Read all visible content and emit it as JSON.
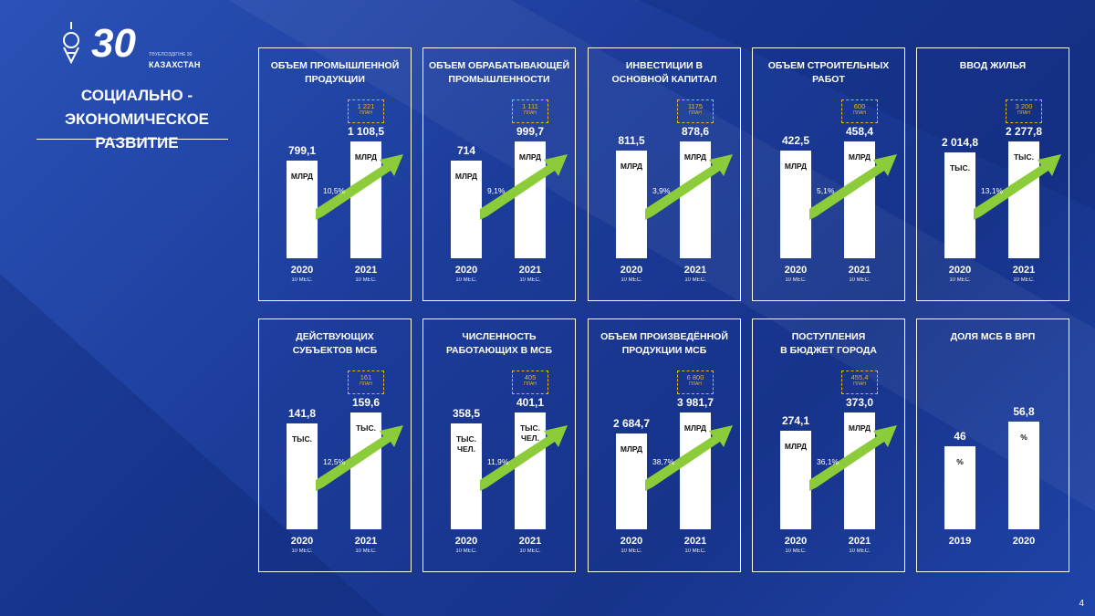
{
  "header": {
    "logo_caption": "КАЗАХСТАН",
    "logo_small": "ТӘУЕЛСІЗДІГІНЕ 30",
    "title_line1": "СОЦИАЛЬНО -",
    "title_line2": "ЭКОНОМИЧЕСКОЕ РАЗВИТИЕ"
  },
  "colors": {
    "accent_arrow": "#8ccc3a",
    "plan_border": "#e8b321",
    "card_border": "#ffffff"
  },
  "page_number": "4",
  "chart_data": [
    {
      "type": "bar",
      "title": "ОБЪЕМ ПРОМЫШЛЕННОЙ ПРОДУКЦИИ",
      "title_lines": [
        "ОБЪЕМ ПРОМЫШЛЕННОЙ",
        "ПРОДУКЦИИ"
      ],
      "categories": [
        "2020",
        "2021"
      ],
      "subs": [
        "10 МЕС.",
        "10 МЕС."
      ],
      "values": [
        799.1,
        1108.5
      ],
      "value_labels": [
        "799,1",
        "1 108,5"
      ],
      "units": [
        [
          "МЛРД"
        ],
        [
          "МЛРД"
        ]
      ],
      "growth": "10,5%",
      "plan_value": "1 221",
      "plan_label": "ПЛАН"
    },
    {
      "type": "bar",
      "title": "ОБЪЕМ ОБРАБАТЫВАЮЩЕЙ ПРОМЫШЛЕННОСТИ",
      "title_lines": [
        "ОБЪЕМ ОБРАБАТЫВАЮЩЕЙ",
        "ПРОМЫШЛЕННОСТИ"
      ],
      "categories": [
        "2020",
        "2021"
      ],
      "subs": [
        "10 МЕС.",
        "10 МЕС."
      ],
      "values": [
        714,
        999.7
      ],
      "value_labels": [
        "714",
        "999,7"
      ],
      "units": [
        [
          "МЛРД"
        ],
        [
          "МЛРД"
        ]
      ],
      "growth": "9,1%",
      "plan_value": "1 111",
      "plan_label": "ПЛАН"
    },
    {
      "type": "bar",
      "title": "ИНВЕСТИЦИИ В ОСНОВНОЙ КАПИТАЛ",
      "title_lines": [
        "ИНВЕСТИЦИИ В",
        "ОСНОВНОЙ КАПИТАЛ"
      ],
      "categories": [
        "2020",
        "2021"
      ],
      "subs": [
        "10 МЕС.",
        "10 МЕС."
      ],
      "values": [
        811.5,
        878.6
      ],
      "value_labels": [
        "811,5",
        "878,6"
      ],
      "units": [
        [
          "МЛРД"
        ],
        [
          "МЛРД"
        ]
      ],
      "growth": "3,9%",
      "plan_value": "1175",
      "plan_label": "ПЛАН"
    },
    {
      "type": "bar",
      "title": "ОБЪЕМ СТРОИТЕЛЬНЫХ РАБОТ",
      "title_lines": [
        "ОБЪЕМ СТРОИТЕЛЬНЫХ",
        "РАБОТ"
      ],
      "categories": [
        "2020",
        "2021"
      ],
      "subs": [
        "10 МЕС.",
        "10 МЕС."
      ],
      "values": [
        422.5,
        458.4
      ],
      "value_labels": [
        "422,5",
        "458,4"
      ],
      "units": [
        [
          "МЛРД"
        ],
        [
          "МЛРД"
        ]
      ],
      "growth": "5,1%",
      "plan_value": "600",
      "plan_label": "ПЛАН"
    },
    {
      "type": "bar",
      "title": "ВВОД ЖИЛЬЯ",
      "title_lines": [
        "ВВОД ЖИЛЬЯ"
      ],
      "categories": [
        "2020",
        "2021"
      ],
      "subs": [
        "10 МЕС.",
        "10 МЕС."
      ],
      "values": [
        2014.8,
        2277.8
      ],
      "value_labels": [
        "2 014,8",
        "2 277,8"
      ],
      "units": [
        [
          "ТЫС."
        ],
        [
          "ТЫС."
        ]
      ],
      "growth": "13,1%",
      "plan_value": "3 200",
      "plan_label": "ПЛАН"
    },
    {
      "type": "bar",
      "title": "ДЕЙСТВУЮЩИХ СУБЪЕКТОВ МСБ",
      "title_lines": [
        "ДЕЙСТВУЮЩИХ",
        "СУБЪЕКТОВ МСБ"
      ],
      "categories": [
        "2020",
        "2021"
      ],
      "subs": [
        "10 МЕС.",
        "10 МЕС."
      ],
      "values": [
        141.8,
        159.6
      ],
      "value_labels": [
        "141,8",
        "159,6"
      ],
      "units": [
        [
          "ТЫС."
        ],
        [
          "ТЫС."
        ]
      ],
      "growth": "12,5%",
      "plan_value": "161",
      "plan_label": "ПЛАН"
    },
    {
      "type": "bar",
      "title": "ЧИСЛЕННОСТЬ РАБОТАЮЩИХ В МСБ",
      "title_lines": [
        "ЧИСЛЕННОСТЬ",
        "РАБОТАЮЩИХ В МСБ"
      ],
      "categories": [
        "2020",
        "2021"
      ],
      "subs": [
        "10 МЕС.",
        "10 МЕС."
      ],
      "values": [
        358.5,
        401.1
      ],
      "value_labels": [
        "358,5",
        "401,1"
      ],
      "units": [
        [
          "ТЫС.",
          "ЧЕЛ."
        ],
        [
          "ТЫС.",
          "ЧЕЛ."
        ]
      ],
      "growth": "11,9%",
      "plan_value": "405",
      "plan_label": "ПЛАН"
    },
    {
      "type": "bar",
      "title": "ОБЪЕМ ПРОИЗВЕДЁННОЙ ПРОДУКЦИИ МСБ",
      "title_lines": [
        "ОБЪЕМ ПРОИЗВЕДЁННОЙ",
        "ПРОДУКЦИИ МСБ"
      ],
      "categories": [
        "2020",
        "2021"
      ],
      "subs": [
        "10 МЕС.",
        "10 МЕС."
      ],
      "values": [
        2684.7,
        3981.7
      ],
      "value_labels": [
        "2 684,7",
        "3 981,7"
      ],
      "units": [
        [
          "МЛРД"
        ],
        [
          "МЛРД"
        ]
      ],
      "growth": "38,7%",
      "plan_value": "6 800",
      "plan_label": "ПЛАН"
    },
    {
      "type": "bar",
      "title": "ПОСТУПЛЕНИЯ В БЮДЖЕТ ГОРОДА",
      "title_lines": [
        "ПОСТУПЛЕНИЯ",
        "В БЮДЖЕТ ГОРОДА"
      ],
      "categories": [
        "2020",
        "2021"
      ],
      "subs": [
        "10 МЕС.",
        "10 МЕС."
      ],
      "values": [
        274.1,
        373.0
      ],
      "value_labels": [
        "274,1",
        "373,0"
      ],
      "units": [
        [
          "МЛРД"
        ],
        [
          "МЛРД"
        ]
      ],
      "growth": "36,1%",
      "plan_value": "455,4",
      "plan_label": "ПЛАН"
    },
    {
      "type": "bar",
      "title": "ДОЛЯ МСБ В ВРП",
      "title_lines": [
        "ДОЛЯ МСБ В ВРП"
      ],
      "categories": [
        "2019",
        "2020"
      ],
      "subs": [
        "",
        ""
      ],
      "values": [
        46,
        56.8
      ],
      "value_labels": [
        "46",
        "56,8"
      ],
      "units": [
        [
          "%"
        ],
        [
          "%"
        ]
      ],
      "growth": "",
      "plan_value": "",
      "plan_label": ""
    }
  ]
}
